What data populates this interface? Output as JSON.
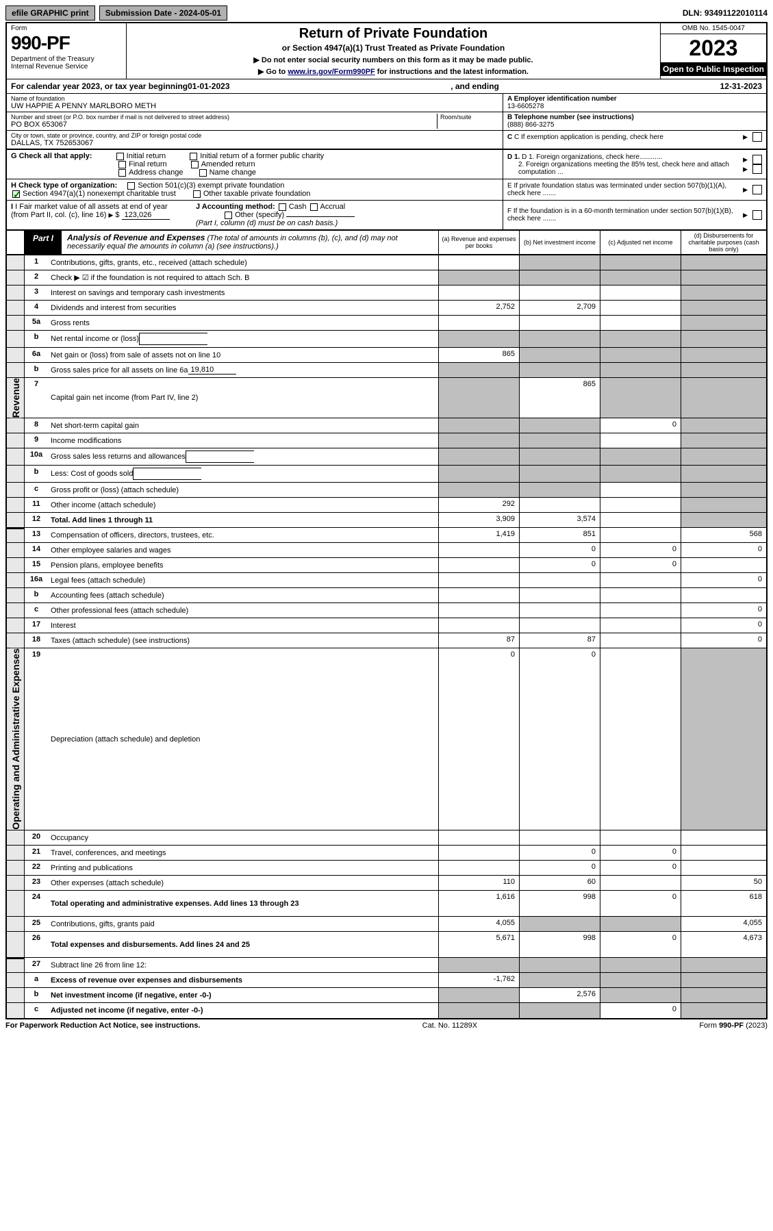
{
  "topbar": {
    "efile": "efile GRAPHIC print",
    "submission": "Submission Date - 2024-05-01",
    "dln": "DLN: 93491122010114"
  },
  "header": {
    "form_label": "Form",
    "form_num": "990-PF",
    "dept": "Department of the Treasury\nInternal Revenue Service",
    "title": "Return of Private Foundation",
    "subtitle": "or Section 4947(a)(1) Trust Treated as Private Foundation",
    "instr1": "▶ Do not enter social security numbers on this form as it may be made public.",
    "instr2_pre": "▶ Go to ",
    "instr2_link": "www.irs.gov/Form990PF",
    "instr2_post": " for instructions and the latest information.",
    "omb": "OMB No. 1545-0047",
    "year": "2023",
    "open": "Open to Public Inspection"
  },
  "calyear": {
    "pre": "For calendar year 2023, or tax year beginning ",
    "begin": "01-01-2023",
    "mid": ", and ending ",
    "end": "12-31-2023"
  },
  "info": {
    "name_lbl": "Name of foundation",
    "name": "UW HAPPIE A PENNY MARLBORO METH",
    "addr_lbl": "Number and street (or P.O. box number if mail is not delivered to street address)",
    "addr": "PO BOX 653067",
    "room_lbl": "Room/suite",
    "city_lbl": "City or town, state or province, country, and ZIP or foreign postal code",
    "city": "DALLAS, TX  752653067",
    "a_lbl": "A Employer identification number",
    "a_val": "13-6605278",
    "b_lbl": "B Telephone number (see instructions)",
    "b_val": "(888) 866-3275",
    "c_lbl": "C If exemption application is pending, check here",
    "d1_lbl": "D 1. Foreign organizations, check here............",
    "d2_lbl": "2. Foreign organizations meeting the 85% test, check here and attach computation ...",
    "e_lbl": "E If private foundation status was terminated under section 507(b)(1)(A), check here .......",
    "f_lbl": "F If the foundation is in a 60-month termination under section 507(b)(1)(B), check here .......",
    "g_lbl": "G Check all that apply:",
    "g_opts": [
      "Initial return",
      "Initial return of a former public charity",
      "Final return",
      "Amended return",
      "Address change",
      "Name change"
    ],
    "h_lbl": "H Check type of organization:",
    "h_opt1": "Section 501(c)(3) exempt private foundation",
    "h_opt2": "Section 4947(a)(1) nonexempt charitable trust",
    "h_opt3": "Other taxable private foundation",
    "i_lbl": "I Fair market value of all assets at end of year (from Part II, col. (c), line 16)",
    "i_val": "123,026",
    "j_lbl": "J Accounting method:",
    "j_cash": "Cash",
    "j_accrual": "Accrual",
    "j_other": "Other (specify)",
    "j_note": "(Part I, column (d) must be on cash basis.)"
  },
  "part1": {
    "tab": "Part I",
    "title": "Analysis of Revenue and Expenses",
    "note": "(The total of amounts in columns (b), (c), and (d) may not necessarily equal the amounts in column (a) (see instructions).)",
    "col_a": "(a) Revenue and expenses per books",
    "col_b": "(b) Net investment income",
    "col_c": "(c) Adjusted net income",
    "col_d": "(d) Disbursements for charitable purposes (cash basis only)"
  },
  "side": {
    "revenue": "Revenue",
    "expenses": "Operating and Administrative Expenses"
  },
  "rows": [
    {
      "num": "1",
      "desc": "Contributions, gifts, grants, etc., received (attach schedule)",
      "a": "",
      "b": "grey",
      "c": "grey",
      "d": "grey"
    },
    {
      "num": "2",
      "desc": "Check ▶ ☑ if the foundation is not required to attach Sch. B",
      "a": "grey",
      "b": "grey",
      "c": "grey",
      "d": "grey",
      "nobox": true
    },
    {
      "num": "3",
      "desc": "Interest on savings and temporary cash investments",
      "a": "",
      "b": "",
      "c": "",
      "d": "grey"
    },
    {
      "num": "4",
      "desc": "Dividends and interest from securities",
      "a": "2,752",
      "b": "2,709",
      "c": "",
      "d": "grey"
    },
    {
      "num": "5a",
      "desc": "Gross rents",
      "a": "",
      "b": "",
      "c": "",
      "d": "grey"
    },
    {
      "num": "b",
      "desc": "Net rental income or (loss)",
      "a": "grey",
      "b": "grey",
      "c": "grey",
      "d": "grey",
      "inline": true
    },
    {
      "num": "6a",
      "desc": "Net gain or (loss) from sale of assets not on line 10",
      "a": "865",
      "b": "grey",
      "c": "grey",
      "d": "grey"
    },
    {
      "num": "b",
      "desc": "Gross sales price for all assets on line 6a",
      "a": "grey",
      "b": "grey",
      "c": "grey",
      "d": "grey",
      "inline_val": "19,810"
    },
    {
      "num": "7",
      "desc": "Capital gain net income (from Part IV, line 2)",
      "a": "grey",
      "b": "865",
      "c": "grey",
      "d": "grey"
    },
    {
      "num": "8",
      "desc": "Net short-term capital gain",
      "a": "grey",
      "b": "grey",
      "c": "0",
      "d": "grey"
    },
    {
      "num": "9",
      "desc": "Income modifications",
      "a": "grey",
      "b": "grey",
      "c": "",
      "d": "grey"
    },
    {
      "num": "10a",
      "desc": "Gross sales less returns and allowances",
      "a": "grey",
      "b": "grey",
      "c": "grey",
      "d": "grey",
      "inline": true
    },
    {
      "num": "b",
      "desc": "Less: Cost of goods sold",
      "a": "grey",
      "b": "grey",
      "c": "grey",
      "d": "grey",
      "inline": true
    },
    {
      "num": "c",
      "desc": "Gross profit or (loss) (attach schedule)",
      "a": "grey",
      "b": "grey",
      "c": "",
      "d": "grey"
    },
    {
      "num": "11",
      "desc": "Other income (attach schedule)",
      "a": "292",
      "b": "",
      "c": "",
      "d": "grey"
    },
    {
      "num": "12",
      "desc": "Total. Add lines 1 through 11",
      "a": "3,909",
      "b": "3,574",
      "c": "",
      "d": "grey",
      "bold": true
    }
  ],
  "rows2": [
    {
      "num": "13",
      "desc": "Compensation of officers, directors, trustees, etc.",
      "a": "1,419",
      "b": "851",
      "c": "",
      "d": "568"
    },
    {
      "num": "14",
      "desc": "Other employee salaries and wages",
      "a": "",
      "b": "0",
      "c": "0",
      "d": "0"
    },
    {
      "num": "15",
      "desc": "Pension plans, employee benefits",
      "a": "",
      "b": "0",
      "c": "0",
      "d": ""
    },
    {
      "num": "16a",
      "desc": "Legal fees (attach schedule)",
      "a": "",
      "b": "",
      "c": "",
      "d": "0"
    },
    {
      "num": "b",
      "desc": "Accounting fees (attach schedule)",
      "a": "",
      "b": "",
      "c": "",
      "d": ""
    },
    {
      "num": "c",
      "desc": "Other professional fees (attach schedule)",
      "a": "",
      "b": "",
      "c": "",
      "d": "0"
    },
    {
      "num": "17",
      "desc": "Interest",
      "a": "",
      "b": "",
      "c": "",
      "d": "0"
    },
    {
      "num": "18",
      "desc": "Taxes (attach schedule) (see instructions)",
      "a": "87",
      "b": "87",
      "c": "",
      "d": "0"
    },
    {
      "num": "19",
      "desc": "Depreciation (attach schedule) and depletion",
      "a": "0",
      "b": "0",
      "c": "",
      "d": "grey"
    },
    {
      "num": "20",
      "desc": "Occupancy",
      "a": "",
      "b": "",
      "c": "",
      "d": ""
    },
    {
      "num": "21",
      "desc": "Travel, conferences, and meetings",
      "a": "",
      "b": "0",
      "c": "0",
      "d": ""
    },
    {
      "num": "22",
      "desc": "Printing and publications",
      "a": "",
      "b": "0",
      "c": "0",
      "d": ""
    },
    {
      "num": "23",
      "desc": "Other expenses (attach schedule)",
      "a": "110",
      "b": "60",
      "c": "",
      "d": "50"
    },
    {
      "num": "24",
      "desc": "Total operating and administrative expenses. Add lines 13 through 23",
      "a": "1,616",
      "b": "998",
      "c": "0",
      "d": "618",
      "bold": true,
      "tall": true
    },
    {
      "num": "25",
      "desc": "Contributions, gifts, grants paid",
      "a": "4,055",
      "b": "grey",
      "c": "grey",
      "d": "4,055"
    },
    {
      "num": "26",
      "desc": "Total expenses and disbursements. Add lines 24 and 25",
      "a": "5,671",
      "b": "998",
      "c": "0",
      "d": "4,673",
      "bold": true,
      "tall": true
    }
  ],
  "rows3": [
    {
      "num": "27",
      "desc": "Subtract line 26 from line 12:",
      "a": "grey",
      "b": "grey",
      "c": "grey",
      "d": "grey"
    },
    {
      "num": "a",
      "desc": "Excess of revenue over expenses and disbursements",
      "a": "-1,762",
      "b": "grey",
      "c": "grey",
      "d": "grey",
      "bold": true
    },
    {
      "num": "b",
      "desc": "Net investment income (if negative, enter -0-)",
      "a": "grey",
      "b": "2,576",
      "c": "grey",
      "d": "grey",
      "bold": true
    },
    {
      "num": "c",
      "desc": "Adjusted net income (if negative, enter -0-)",
      "a": "grey",
      "b": "grey",
      "c": "0",
      "d": "grey",
      "bold": true
    }
  ],
  "footer": {
    "left": "For Paperwork Reduction Act Notice, see instructions.",
    "mid": "Cat. No. 11289X",
    "right": "Form 990-PF (2023)"
  }
}
